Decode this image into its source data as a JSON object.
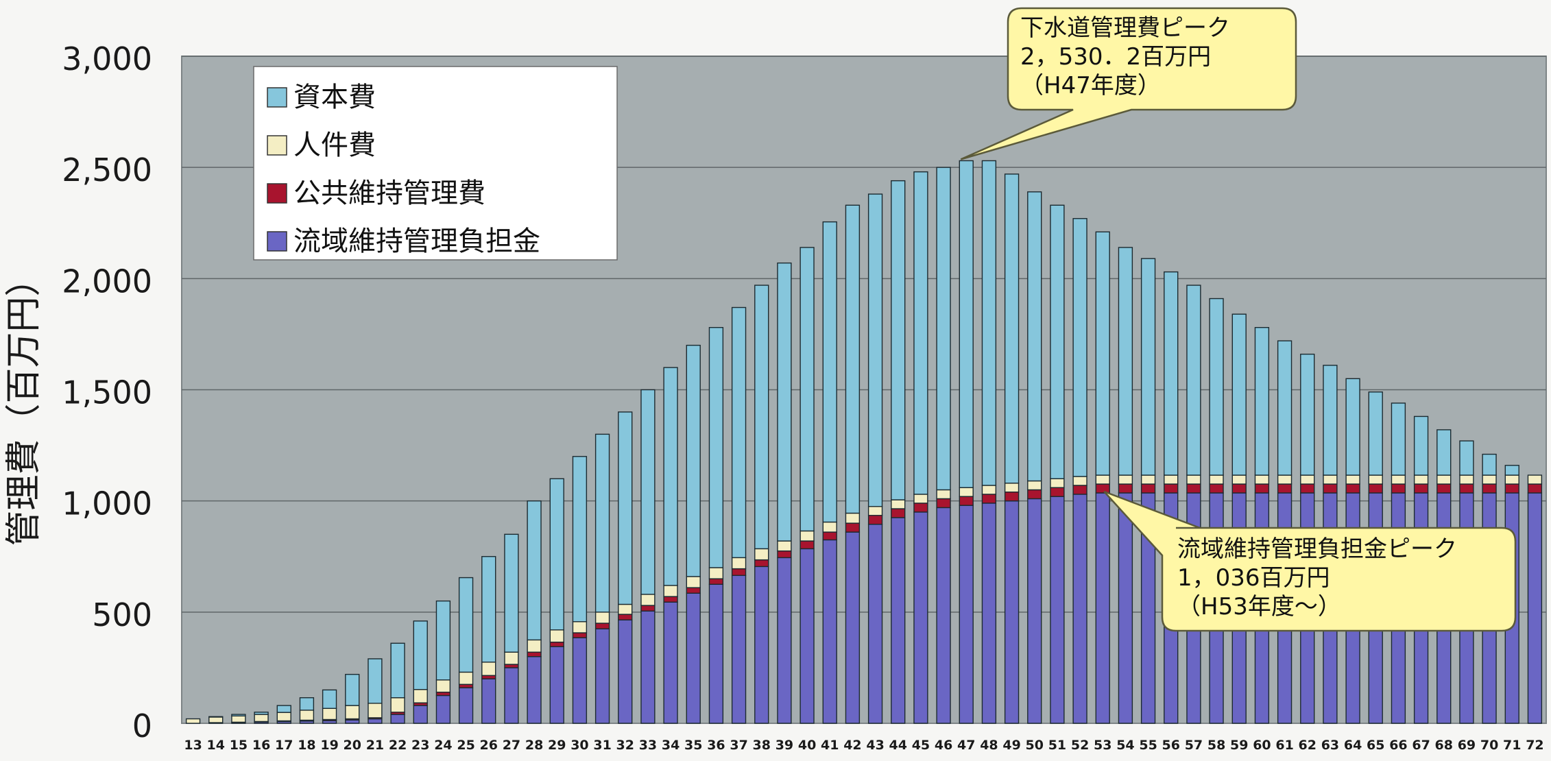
{
  "chart_data": {
    "type": "bar",
    "stacked": true,
    "ylabel": "管理費（百万円）",
    "xlabel": "",
    "ylim": [
      0,
      3000
    ],
    "yticks": [
      0,
      500,
      1000,
      1500,
      2000,
      2500,
      3000
    ],
    "ytick_labels": [
      "0",
      "500",
      "1,000",
      "1,500",
      "2,000",
      "2,500",
      "3,000"
    ],
    "grid": true,
    "legend_position": "top-left",
    "categories": [
      "13",
      "14",
      "15",
      "16",
      "17",
      "18",
      "19",
      "20",
      "21",
      "22",
      "23",
      "24",
      "25",
      "26",
      "27",
      "28",
      "29",
      "30",
      "31",
      "32",
      "33",
      "34",
      "35",
      "36",
      "37",
      "38",
      "39",
      "40",
      "41",
      "42",
      "43",
      "44",
      "45",
      "46",
      "47",
      "48",
      "49",
      "50",
      "51",
      "52",
      "53",
      "54",
      "55",
      "56",
      "57",
      "58",
      "59",
      "60",
      "61",
      "62",
      "63",
      "64",
      "65",
      "66",
      "67",
      "68",
      "69",
      "70",
      "71",
      "72"
    ],
    "series": [
      {
        "name": "流域維持管理負担金",
        "color": "#6a66c4",
        "values": [
          0,
          2,
          4,
          6,
          8,
          10,
          12,
          15,
          20,
          40,
          80,
          125,
          160,
          200,
          250,
          300,
          345,
          385,
          425,
          465,
          505,
          545,
          585,
          625,
          665,
          705,
          745,
          785,
          825,
          860,
          895,
          925,
          950,
          970,
          980,
          990,
          1000,
          1010,
          1020,
          1030,
          1036,
          1036,
          1036,
          1036,
          1036,
          1036,
          1036,
          1036,
          1036,
          1036,
          1036,
          1036,
          1036,
          1036,
          1036,
          1036,
          1036,
          1036,
          1036,
          1036
        ]
      },
      {
        "name": "公共維持管理費",
        "color": "#a8142e",
        "values": [
          0,
          1,
          1,
          2,
          3,
          4,
          5,
          5,
          5,
          10,
          12,
          15,
          15,
          15,
          15,
          20,
          20,
          22,
          25,
          25,
          25,
          25,
          25,
          25,
          30,
          30,
          30,
          35,
          35,
          40,
          40,
          40,
          40,
          40,
          40,
          40,
          40,
          40,
          40,
          40,
          40,
          40,
          40,
          40,
          40,
          40,
          40,
          40,
          40,
          40,
          40,
          40,
          40,
          40,
          40,
          40,
          40,
          40,
          40,
          40
        ]
      },
      {
        "name": "人件費",
        "color": "#f4eec4",
        "values": [
          20,
          25,
          28,
          32,
          38,
          45,
          50,
          60,
          65,
          65,
          60,
          55,
          55,
          60,
          55,
          55,
          55,
          50,
          50,
          45,
          50,
          50,
          50,
          50,
          50,
          50,
          45,
          45,
          45,
          45,
          40,
          40,
          40,
          40,
          40,
          40,
          40,
          40,
          40,
          40,
          40,
          40,
          40,
          40,
          40,
          40,
          40,
          40,
          40,
          40,
          40,
          40,
          40,
          40,
          40,
          40,
          40,
          40,
          40,
          40
        ]
      },
      {
        "name": "資本費",
        "color": "#86c6dc",
        "values": [
          0,
          2,
          7,
          10,
          31,
          56,
          83,
          140,
          200,
          245,
          308,
          355,
          425,
          475,
          530,
          625,
          680,
          743,
          800,
          865,
          920,
          980,
          1040,
          1080,
          1125,
          1185,
          1250,
          1275,
          1350,
          1385,
          1405,
          1435,
          1450,
          1450,
          1470,
          1460,
          1390,
          1300,
          1230,
          1160,
          1094,
          1024,
          974,
          914,
          854,
          794,
          724,
          664,
          604,
          544,
          494,
          434,
          374,
          324,
          264,
          204,
          154,
          94,
          44,
          0
        ]
      }
    ],
    "annotations": [
      {
        "id": "peak_total",
        "lines": [
          "下水道管理費ピーク",
          "2，530．2百万円",
          "（H47年度）"
        ],
        "target_category": "47",
        "target_value": 2530.2
      },
      {
        "id": "peak_basin",
        "lines": [
          "流域維持管理負担金ピーク",
          "1，036百万円",
          "（H53年度～）"
        ],
        "target_category": "53",
        "target_value": 1036
      }
    ]
  }
}
